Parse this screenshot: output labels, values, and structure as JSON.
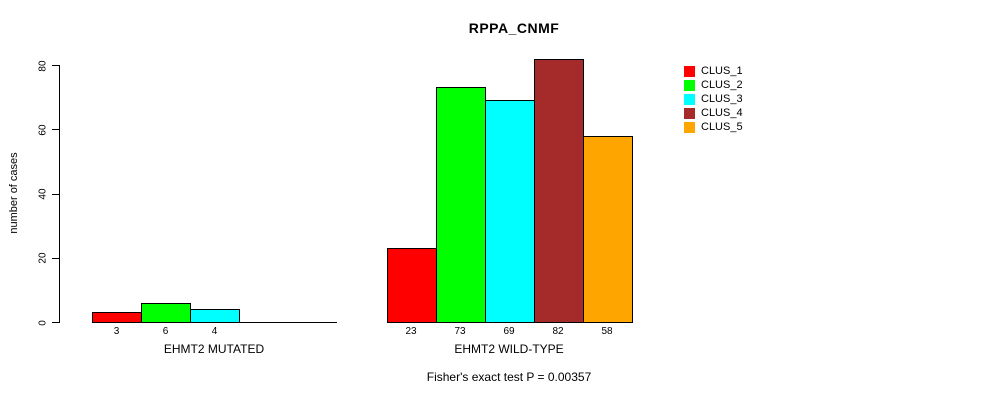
{
  "chart_data": {
    "type": "bar",
    "title": "RPPA_CNMF",
    "ylabel": "number of cases",
    "xlabel": "",
    "ylim": [
      0,
      80
    ],
    "yticks": [
      0,
      20,
      40,
      60,
      80
    ],
    "grid": false,
    "legend_position": "right",
    "legend": [
      {
        "name": "CLUS_1",
        "color": "#FF0000"
      },
      {
        "name": "CLUS_2",
        "color": "#00FF00"
      },
      {
        "name": "CLUS_3",
        "color": "#00FFFF"
      },
      {
        "name": "CLUS_4",
        "color": "#A52A2A"
      },
      {
        "name": "CLUS_5",
        "color": "#FFA500"
      }
    ],
    "groups": [
      {
        "label": "EHMT2 MUTATED",
        "values": [
          3,
          6,
          4,
          0,
          0
        ]
      },
      {
        "label": "EHMT2 WILD-TYPE",
        "values": [
          23,
          73,
          69,
          82,
          58
        ]
      }
    ],
    "footnote": "Fisher's exact test P = 0.00357"
  }
}
